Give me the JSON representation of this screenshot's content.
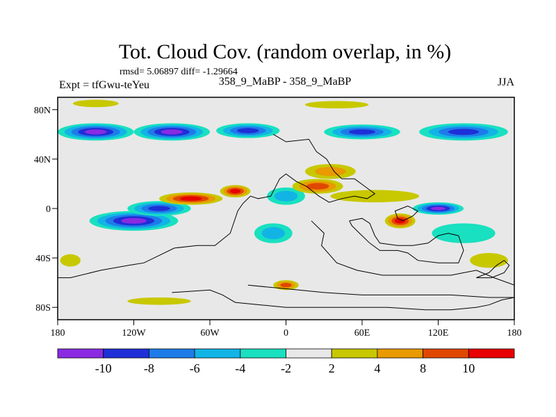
{
  "chart_data": {
    "type": "heatmap",
    "title": "Tot. Cloud Cov. (random overlap, in %)",
    "stats_text": "rmsd= 5.06897 diff= -1.29664",
    "left_label": "Expt = tfGwu-teYeu",
    "center_label": "358_9_MaBP - 358_9_MaBP",
    "right_label": "JJA",
    "x_axis": {
      "min": -180,
      "max": 180,
      "ticks": [
        {
          "value": -180,
          "label": "180"
        },
        {
          "value": -120,
          "label": "120W"
        },
        {
          "value": -60,
          "label": "60W"
        },
        {
          "value": 0,
          "label": "0"
        },
        {
          "value": 60,
          "label": "60E"
        },
        {
          "value": 120,
          "label": "120E"
        },
        {
          "value": 180,
          "label": "180"
        }
      ]
    },
    "y_axis": {
      "min": -90,
      "max": 90,
      "ticks": [
        {
          "value": 80,
          "label": "80N"
        },
        {
          "value": 40,
          "label": "40N"
        },
        {
          "value": 0,
          "label": "0"
        },
        {
          "value": -40,
          "label": "40S"
        },
        {
          "value": -80,
          "label": "80S"
        }
      ]
    },
    "levels": [
      -10,
      -8,
      -6,
      -4,
      -2,
      2,
      4,
      8,
      10
    ],
    "level_labels": [
      "-10",
      "-8",
      "-6",
      "-4",
      "-2",
      "2",
      "4",
      "8",
      "10"
    ],
    "colors": [
      "#8a2be2",
      "#1e2fd8",
      "#1e7be8",
      "#12b4e6",
      "#19e0c0",
      "#e8e8e8",
      "#c8c800",
      "#e89a00",
      "#e04800",
      "#e80000"
    ],
    "anomaly_regions": [
      {
        "lon": -150,
        "lat": 62,
        "rlon": 30,
        "rlat": 7,
        "value": -11
      },
      {
        "lon": -90,
        "lat": 62,
        "rlon": 30,
        "rlat": 7,
        "value": -10
      },
      {
        "lon": -30,
        "lat": 63,
        "rlon": 25,
        "rlat": 6,
        "value": -9
      },
      {
        "lon": 60,
        "lat": 62,
        "rlon": 30,
        "rlat": 6,
        "value": -9
      },
      {
        "lon": 140,
        "lat": 62,
        "rlon": 35,
        "rlat": 7,
        "value": -9
      },
      {
        "lon": -120,
        "lat": -10,
        "rlon": 35,
        "rlat": 8,
        "value": -11
      },
      {
        "lon": -100,
        "lat": 0,
        "rlon": 25,
        "rlat": 6,
        "value": -8
      },
      {
        "lon": 120,
        "lat": 0,
        "rlon": 20,
        "rlat": 5,
        "value": -11
      },
      {
        "lon": 0,
        "lat": 10,
        "rlon": 15,
        "rlat": 7,
        "value": -5
      },
      {
        "lon": -10,
        "lat": -20,
        "rlon": 15,
        "rlat": 8,
        "value": -5
      },
      {
        "lon": 140,
        "lat": -20,
        "rlon": 25,
        "rlat": 8,
        "value": -3
      },
      {
        "lon": -75,
        "lat": 8,
        "rlon": 25,
        "rlat": 5,
        "value": 11
      },
      {
        "lon": -40,
        "lat": 14,
        "rlon": 12,
        "rlat": 5,
        "value": 10
      },
      {
        "lon": 25,
        "lat": 18,
        "rlon": 20,
        "rlat": 6,
        "value": 8
      },
      {
        "lon": 35,
        "lat": 30,
        "rlon": 20,
        "rlat": 6,
        "value": 6
      },
      {
        "lon": 90,
        "lat": -10,
        "rlon": 12,
        "rlat": 6,
        "value": 11
      },
      {
        "lon": 70,
        "lat": 10,
        "rlon": 35,
        "rlat": 5,
        "value": 3
      },
      {
        "lon": -150,
        "lat": 85,
        "rlon": 18,
        "rlat": 3,
        "value": 3
      },
      {
        "lon": 40,
        "lat": 84,
        "rlon": 25,
        "rlat": 3,
        "value": 3
      },
      {
        "lon": 0,
        "lat": -62,
        "rlon": 10,
        "rlat": 4,
        "value": 8
      },
      {
        "lon": 160,
        "lat": -42,
        "rlon": 15,
        "rlat": 6,
        "value": 3
      },
      {
        "lon": -170,
        "lat": -42,
        "rlon": 8,
        "rlat": 5,
        "value": 3
      },
      {
        "lon": -100,
        "lat": -75,
        "rlon": 25,
        "rlat": 3,
        "value": 3
      }
    ]
  }
}
